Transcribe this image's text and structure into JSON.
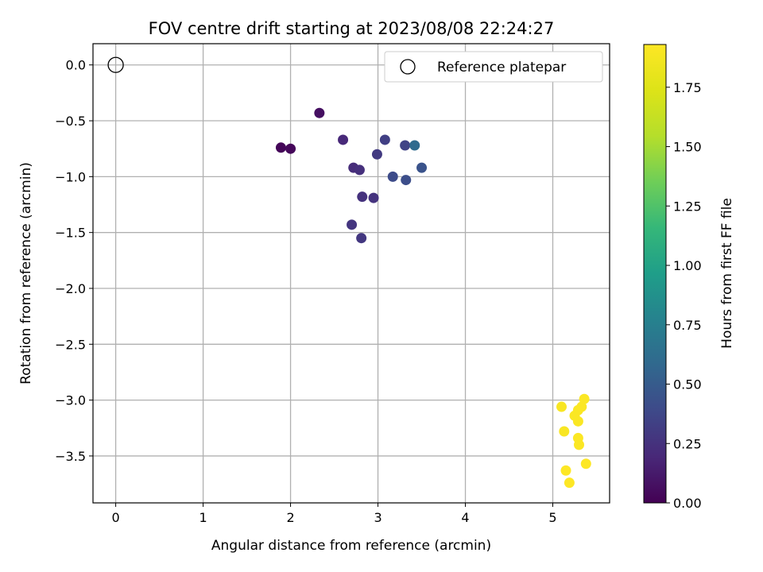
{
  "chart_data": {
    "type": "scatter",
    "title": "FOV centre drift starting at 2023/08/08 22:24:27",
    "xlabel": "Angular distance from reference (arcmin)",
    "ylabel": "Rotation from reference (arcmin)",
    "xlim": [
      -0.26,
      5.65
    ],
    "ylim": [
      -3.92,
      0.19
    ],
    "xticks": [
      0,
      1,
      2,
      3,
      4,
      5
    ],
    "xtick_labels": [
      "0",
      "1",
      "2",
      "3",
      "4",
      "5"
    ],
    "yticks": [
      0.0,
      -0.5,
      -1.0,
      -1.5,
      -2.0,
      -2.5,
      -3.0,
      -3.5
    ],
    "ytick_labels": [
      "0.0",
      "−0.5",
      "−1.0",
      "−1.5",
      "−2.0",
      "−2.5",
      "−3.0",
      "−3.5"
    ],
    "grid": true,
    "legend": {
      "placement": "top-right",
      "entries": [
        "Reference platepar"
      ]
    },
    "reference_point": {
      "x": 0.0,
      "y": 0.0
    },
    "colorbar": {
      "label": "Hours from first FF file",
      "min": 0.0,
      "max": 1.93,
      "ticks": [
        0.0,
        0.25,
        0.5,
        0.75,
        1.0,
        1.25,
        1.5,
        1.75
      ],
      "tick_labels": [
        "0.00",
        "0.25",
        "0.50",
        "0.75",
        "1.00",
        "1.25",
        "1.50",
        "1.75"
      ],
      "colormap": "viridis"
    },
    "points": [
      {
        "x": 1.89,
        "y": -0.74,
        "hours": 0.02
      },
      {
        "x": 2.0,
        "y": -0.75,
        "hours": 0.03
      },
      {
        "x": 2.33,
        "y": -0.43,
        "hours": 0.07
      },
      {
        "x": 2.6,
        "y": -0.67,
        "hours": 0.2
      },
      {
        "x": 2.72,
        "y": -0.92,
        "hours": 0.22
      },
      {
        "x": 2.79,
        "y": -0.94,
        "hours": 0.24
      },
      {
        "x": 2.82,
        "y": -1.18,
        "hours": 0.25
      },
      {
        "x": 2.95,
        "y": -1.19,
        "hours": 0.26
      },
      {
        "x": 2.7,
        "y": -1.43,
        "hours": 0.27
      },
      {
        "x": 2.81,
        "y": -1.55,
        "hours": 0.28
      },
      {
        "x": 2.99,
        "y": -0.8,
        "hours": 0.3
      },
      {
        "x": 3.08,
        "y": -0.67,
        "hours": 0.33
      },
      {
        "x": 3.31,
        "y": -0.72,
        "hours": 0.35
      },
      {
        "x": 3.17,
        "y": -1.0,
        "hours": 0.4
      },
      {
        "x": 3.32,
        "y": -1.03,
        "hours": 0.42
      },
      {
        "x": 3.5,
        "y": -0.92,
        "hours": 0.45
      },
      {
        "x": 3.42,
        "y": -0.72,
        "hours": 0.6
      },
      {
        "x": 5.1,
        "y": -3.06,
        "hours": 1.9
      },
      {
        "x": 5.13,
        "y": -3.28,
        "hours": 1.9
      },
      {
        "x": 5.25,
        "y": -3.14,
        "hours": 1.91
      },
      {
        "x": 5.29,
        "y": -3.09,
        "hours": 1.91
      },
      {
        "x": 5.29,
        "y": -3.19,
        "hours": 1.91
      },
      {
        "x": 5.33,
        "y": -3.06,
        "hours": 1.92
      },
      {
        "x": 5.36,
        "y": -2.99,
        "hours": 1.92
      },
      {
        "x": 5.29,
        "y": -3.34,
        "hours": 1.92
      },
      {
        "x": 5.3,
        "y": -3.4,
        "hours": 1.92
      },
      {
        "x": 5.38,
        "y": -3.57,
        "hours": 1.93
      },
      {
        "x": 5.15,
        "y": -3.63,
        "hours": 1.93
      },
      {
        "x": 5.19,
        "y": -3.74,
        "hours": 1.93
      }
    ]
  }
}
